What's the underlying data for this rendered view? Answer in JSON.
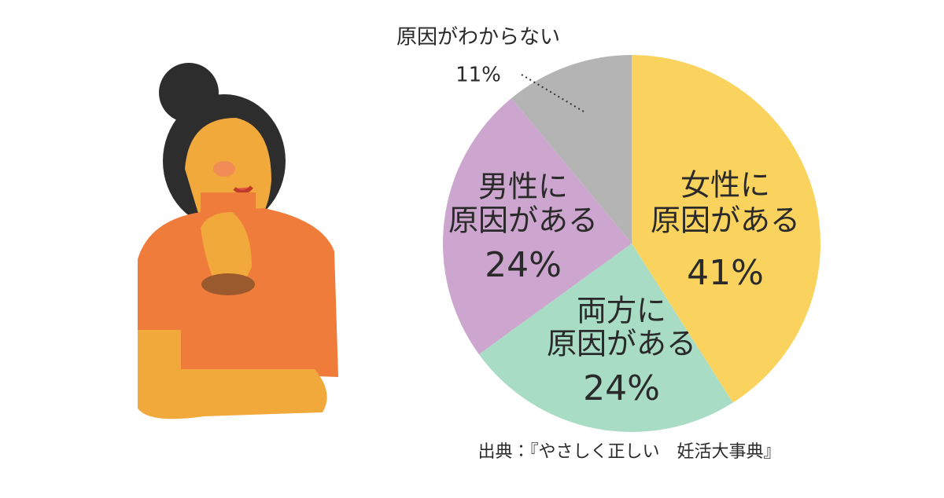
{
  "chart_data": {
    "type": "pie",
    "categories": [
      [
        "女性に",
        "原因がある"
      ],
      [
        "両方に",
        "原因がある"
      ],
      [
        "男性に",
        "原因がある"
      ],
      [
        "原因がわからない"
      ]
    ],
    "values": [
      41,
      24,
      24,
      11
    ],
    "value_labels": [
      "41%",
      "24%",
      "24%",
      "11%"
    ],
    "colors": [
      "#fad35e",
      "#a9dcc5",
      "#cda6cf",
      "#b4b4b4"
    ],
    "source": "出典：『やさしく正しい　妊活大事典』"
  }
}
